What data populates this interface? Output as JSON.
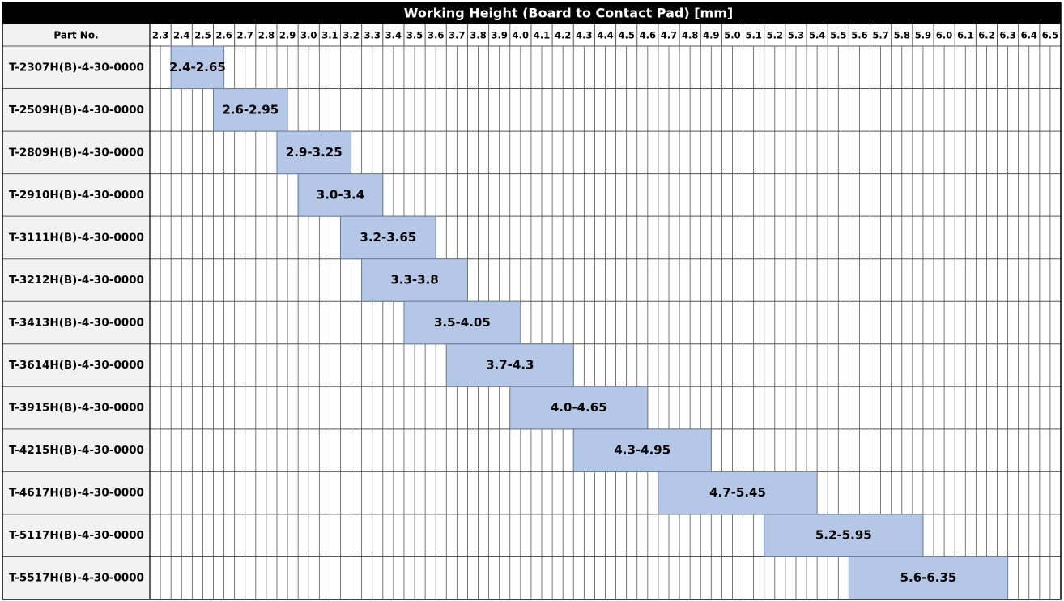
{
  "chart_data": {
    "type": "range",
    "title": "Working Height (Board to Contact Pad) [mm]",
    "category_header": "Part No.",
    "categories": [
      "T-2307H(B)-4-30-0000",
      "T-2509H(B)-4-30-0000",
      "T-2809H(B)-4-30-0000",
      "T-2910H(B)-4-30-0000",
      "T-3111H(B)-4-30-0000",
      "T-3212H(B)-4-30-0000",
      "T-3413H(B)-4-30-0000",
      "T-3614H(B)-4-30-0000",
      "T-3915H(B)-4-30-0000",
      "T-4215H(B)-4-30-0000",
      "T-4617H(B)-4-30-0000",
      "T-5117H(B)-4-30-0000",
      "T-5517H(B)-4-30-0000"
    ],
    "starts": [
      2.4,
      2.6,
      2.9,
      3.0,
      3.2,
      3.3,
      3.5,
      3.7,
      4.0,
      4.3,
      4.7,
      5.2,
      5.6
    ],
    "ends": [
      2.65,
      2.95,
      3.25,
      3.4,
      3.65,
      3.8,
      4.05,
      4.3,
      4.65,
      4.95,
      5.45,
      5.95,
      6.35
    ],
    "value_labels": [
      "2.4-2.65",
      "2.6-2.95",
      "2.9-3.25",
      "3.0-3.4",
      "3.2-3.65",
      "3.3-3.8",
      "3.5-4.05",
      "3.7-4.3",
      "4.0-4.65",
      "4.3-4.95",
      "4.7-5.45",
      "5.2-5.95",
      "5.6-6.35"
    ],
    "color": "#b4c7e7",
    "xlim": [
      2.3,
      6.6
    ],
    "xticks": [
      2.3,
      2.4,
      2.5,
      2.6,
      2.7,
      2.8,
      2.9,
      {
        "value": 3,
        "label": "3.0"
      },
      3.1,
      3.2,
      3.3,
      3.4,
      3.5,
      3.6,
      3.7,
      3.8,
      3.9,
      {
        "value": 4,
        "label": "4.0"
      },
      4.1,
      4.2,
      4.3,
      4.4,
      4.5,
      4.6,
      4.7,
      4.8,
      4.9,
      {
        "value": 5,
        "label": "5.0"
      },
      5.1,
      5.2,
      5.3,
      5.4,
      5.5,
      5.6,
      5.7,
      5.8,
      5.9,
      {
        "value": 6,
        "label": "6.0"
      },
      6.1,
      6.2,
      6.3,
      6.4,
      6.5
    ],
    "grid": true
  }
}
